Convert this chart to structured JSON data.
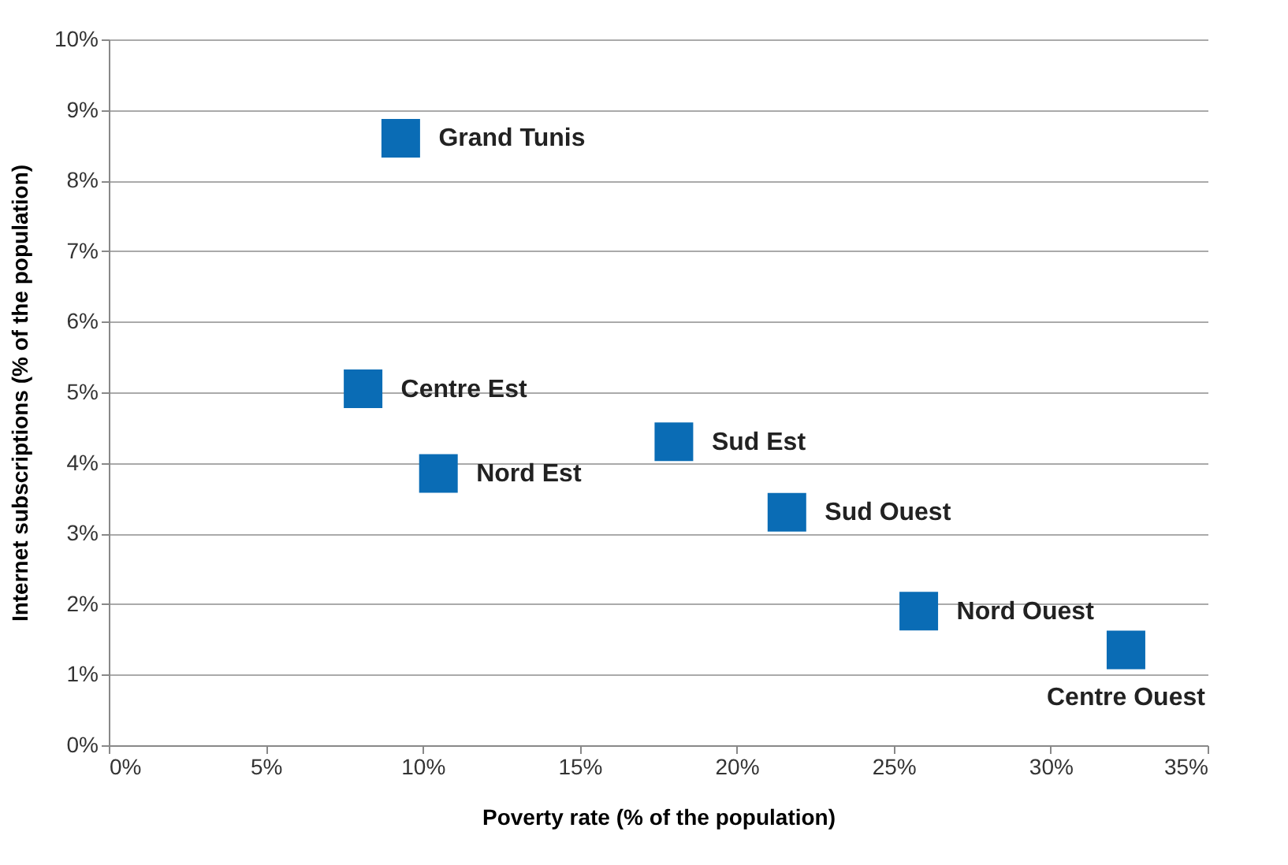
{
  "chart_data": {
    "type": "scatter",
    "xlabel": "Poverty rate (% of the population)",
    "ylabel": "Internet subscriptions (% of the population)",
    "series": [
      {
        "name": "Grand Tunis",
        "color": "#0a6cb5",
        "x": [
          9.3
        ],
        "values": [
          8.6
        ]
      },
      {
        "name": "Centre Est",
        "color": "#0a6cb5",
        "x": [
          8.1
        ],
        "values": [
          5.05
        ]
      },
      {
        "name": "Nord Est",
        "color": "#0a6cb5",
        "x": [
          10.5
        ],
        "values": [
          3.85
        ]
      },
      {
        "name": "Sud Est",
        "color": "#0a6cb5",
        "x": [
          18.0
        ],
        "values": [
          4.3
        ]
      },
      {
        "name": "Sud Ouest",
        "color": "#0a6cb5",
        "x": [
          21.6
        ],
        "values": [
          3.3
        ]
      },
      {
        "name": "Nord Ouest",
        "color": "#0a6cb5",
        "x": [
          25.8
        ],
        "values": [
          1.9
        ]
      },
      {
        "name": "Centre Ouest",
        "color": "#0a6cb5",
        "x": [
          32.4
        ],
        "values": [
          1.35
        ]
      }
    ],
    "xlim": [
      0,
      35
    ],
    "xticks": [
      {
        "value": 0,
        "label": "0%"
      },
      {
        "value": 5,
        "label": "5%"
      },
      {
        "value": 10,
        "label": "10%"
      },
      {
        "value": 15,
        "label": "15%"
      },
      {
        "value": 20,
        "label": "20%"
      },
      {
        "value": 25,
        "label": "25%"
      },
      {
        "value": 30,
        "label": "30%"
      },
      {
        "value": 35,
        "label": "35%"
      }
    ],
    "ylim": [
      0,
      10
    ],
    "yticks": [
      {
        "value": 0,
        "label": "0%"
      },
      {
        "value": 1,
        "label": "1%"
      },
      {
        "value": 2,
        "label": "2%"
      },
      {
        "value": 3,
        "label": "3%"
      },
      {
        "value": 4,
        "label": "4%"
      },
      {
        "value": 5,
        "label": "5%"
      },
      {
        "value": 6,
        "label": "6%"
      },
      {
        "value": 7,
        "label": "7%"
      },
      {
        "value": 8,
        "label": "8%"
      },
      {
        "value": 9,
        "label": "9%"
      },
      {
        "value": 10,
        "label": "10%"
      }
    ],
    "grid": "y",
    "legend": false,
    "marker": "square"
  }
}
